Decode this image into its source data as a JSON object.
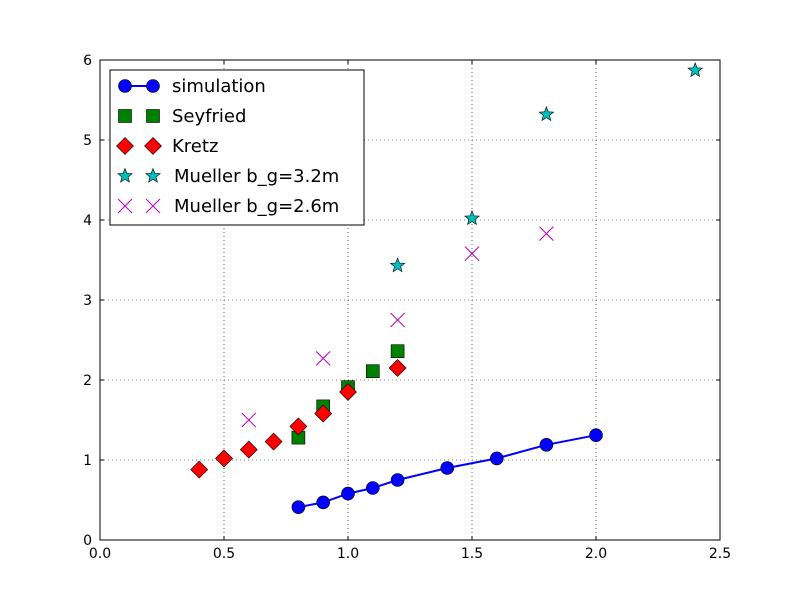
{
  "chart_data": {
    "type": "scatter",
    "title": "",
    "xlabel": "",
    "ylabel": "",
    "xlim": [
      0.0,
      2.5
    ],
    "ylim": [
      0,
      6
    ],
    "x_ticks": [
      "0.0",
      "0.5",
      "1.0",
      "1.5",
      "2.0",
      "2.5"
    ],
    "y_ticks": [
      "0",
      "1",
      "2",
      "3",
      "4",
      "5",
      "6"
    ],
    "grid": true,
    "legend_position": "top-left",
    "series": [
      {
        "name": "simulation",
        "marker": "circle",
        "line": true,
        "color": "#0000ff",
        "points": [
          [
            0.8,
            0.41
          ],
          [
            0.9,
            0.47
          ],
          [
            1.0,
            0.58
          ],
          [
            1.1,
            0.65
          ],
          [
            1.2,
            0.75
          ],
          [
            1.4,
            0.9
          ],
          [
            1.6,
            1.02
          ],
          [
            1.8,
            1.19
          ],
          [
            2.0,
            1.31
          ]
        ]
      },
      {
        "name": "Seyfried",
        "marker": "square",
        "line": false,
        "color": "#008000",
        "points": [
          [
            0.8,
            1.28
          ],
          [
            0.9,
            1.67
          ],
          [
            1.0,
            1.91
          ],
          [
            1.1,
            2.11
          ],
          [
            1.2,
            2.36
          ]
        ]
      },
      {
        "name": "Kretz",
        "marker": "diamond",
        "line": false,
        "color": "#ff0000",
        "points": [
          [
            0.4,
            0.88
          ],
          [
            0.5,
            1.02
          ],
          [
            0.6,
            1.13
          ],
          [
            0.7,
            1.23
          ],
          [
            0.8,
            1.42
          ],
          [
            0.9,
            1.58
          ],
          [
            1.0,
            1.85
          ],
          [
            1.2,
            2.15
          ]
        ]
      },
      {
        "name": "Mueller b_g=3.2m",
        "marker": "star",
        "line": false,
        "color": "#00bfbf",
        "points": [
          [
            1.2,
            3.43
          ],
          [
            1.5,
            4.02
          ],
          [
            1.8,
            5.32
          ],
          [
            2.4,
            5.87
          ]
        ]
      },
      {
        "name": "Mueller b_g=2.6m",
        "marker": "x",
        "line": false,
        "color": "#bf00bf",
        "points": [
          [
            0.6,
            1.5
          ],
          [
            0.9,
            2.27
          ],
          [
            1.2,
            2.75
          ],
          [
            1.5,
            3.58
          ],
          [
            1.8,
            3.83
          ]
        ]
      }
    ]
  }
}
